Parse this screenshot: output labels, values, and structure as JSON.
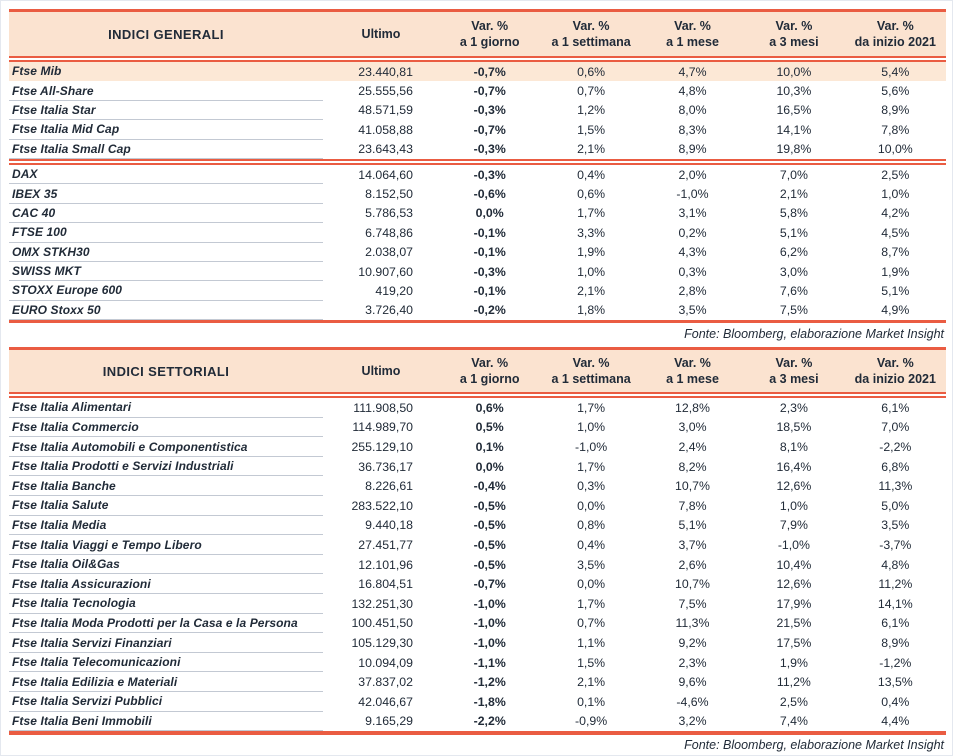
{
  "colors": {
    "accent_red": "#ea5c42",
    "header_bg": "#fbe3d0",
    "highlight_row_bg": "#fce8d6",
    "text": "#212b38",
    "row_separator": "#c3c9d3"
  },
  "columns": {
    "ultimo": "Ultimo",
    "variations": [
      [
        "Var. %",
        "a 1 giorno"
      ],
      [
        "Var. %",
        "a 1 settimana"
      ],
      [
        "Var. %",
        "a 1 mese"
      ],
      [
        "Var. %",
        "a 3 mesi"
      ],
      [
        "Var. %",
        "da inizio 2021"
      ]
    ]
  },
  "tables": [
    {
      "title": "INDICI GENERALI",
      "source": "Fonte: Bloomberg, elaborazione Market Insight",
      "sections": [
        {
          "rows": [
            {
              "label": "Ftse Mib",
              "highlight": true,
              "ultimo": "23.440,81",
              "vars": [
                "-0,7%",
                "0,6%",
                "4,7%",
                "10,0%",
                "5,4%"
              ]
            },
            {
              "label": "Ftse All-Share",
              "ultimo": "25.555,56",
              "vars": [
                "-0,7%",
                "0,7%",
                "4,8%",
                "10,3%",
                "5,6%"
              ]
            },
            {
              "label": "Ftse Italia Star",
              "ultimo": "48.571,59",
              "vars": [
                "-0,3%",
                "1,2%",
                "8,0%",
                "16,5%",
                "8,9%"
              ]
            },
            {
              "label": "Ftse Italia Mid Cap",
              "ultimo": "41.058,88",
              "vars": [
                "-0,7%",
                "1,5%",
                "8,3%",
                "14,1%",
                "7,8%"
              ]
            },
            {
              "label": "Ftse Italia Small Cap",
              "ultimo": "23.643,43",
              "vars": [
                "-0,3%",
                "2,1%",
                "8,9%",
                "19,8%",
                "10,0%"
              ]
            }
          ]
        },
        {
          "rows": [
            {
              "label": "DAX",
              "ultimo": "14.064,60",
              "vars": [
                "-0,3%",
                "0,4%",
                "2,0%",
                "7,0%",
                "2,5%"
              ]
            },
            {
              "label": "IBEX 35",
              "ultimo": "8.152,50",
              "vars": [
                "-0,6%",
                "0,6%",
                "-1,0%",
                "2,1%",
                "1,0%"
              ]
            },
            {
              "label": "CAC 40",
              "ultimo": "5.786,53",
              "vars": [
                "0,0%",
                "1,7%",
                "3,1%",
                "5,8%",
                "4,2%"
              ]
            },
            {
              "label": "FTSE 100",
              "ultimo": "6.748,86",
              "vars": [
                "-0,1%",
                "3,3%",
                "0,2%",
                "5,1%",
                "4,5%"
              ]
            },
            {
              "label": "OMX STKH30",
              "ultimo": "2.038,07",
              "vars": [
                "-0,1%",
                "1,9%",
                "4,3%",
                "6,2%",
                "8,7%"
              ]
            },
            {
              "label": "SWISS MKT",
              "ultimo": "10.907,60",
              "vars": [
                "-0,3%",
                "1,0%",
                "0,3%",
                "3,0%",
                "1,9%"
              ]
            },
            {
              "label": "STOXX Europe 600",
              "ultimo": "419,20",
              "vars": [
                "-0,1%",
                "2,1%",
                "2,8%",
                "7,6%",
                "5,1%"
              ]
            },
            {
              "label": "EURO Stoxx 50",
              "ultimo": "3.726,40",
              "vars": [
                "-0,2%",
                "1,8%",
                "3,5%",
                "7,5%",
                "4,9%"
              ]
            }
          ]
        }
      ]
    },
    {
      "title": "INDICI SETTORIALI",
      "source": "Fonte: Bloomberg, elaborazione Market Insight",
      "sections": [
        {
          "rows": [
            {
              "label": "Ftse Italia Alimentari",
              "ultimo": "111.908,50",
              "vars": [
                "0,6%",
                "1,7%",
                "12,8%",
                "2,3%",
                "6,1%"
              ]
            },
            {
              "label": "Ftse Italia Commercio",
              "ultimo": "114.989,70",
              "vars": [
                "0,5%",
                "1,0%",
                "3,0%",
                "18,5%",
                "7,0%"
              ]
            },
            {
              "label": "Ftse Italia Automobili e Componentistica",
              "ultimo": "255.129,10",
              "vars": [
                "0,1%",
                "-1,0%",
                "2,4%",
                "8,1%",
                "-2,2%"
              ]
            },
            {
              "label": "Ftse Italia Prodotti e Servizi Industriali",
              "ultimo": "36.736,17",
              "vars": [
                "0,0%",
                "1,7%",
                "8,2%",
                "16,4%",
                "6,8%"
              ]
            },
            {
              "label": "Ftse Italia Banche",
              "ultimo": "8.226,61",
              "vars": [
                "-0,4%",
                "0,3%",
                "10,7%",
                "12,6%",
                "11,3%"
              ]
            },
            {
              "label": "Ftse Italia Salute",
              "ultimo": "283.522,10",
              "vars": [
                "-0,5%",
                "0,0%",
                "7,8%",
                "1,0%",
                "5,0%"
              ]
            },
            {
              "label": "Ftse Italia Media",
              "ultimo": "9.440,18",
              "vars": [
                "-0,5%",
                "0,8%",
                "5,1%",
                "7,9%",
                "3,5%"
              ]
            },
            {
              "label": "Ftse Italia Viaggi e Tempo Libero",
              "ultimo": "27.451,77",
              "vars": [
                "-0,5%",
                "0,4%",
                "3,7%",
                "-1,0%",
                "-3,7%"
              ]
            },
            {
              "label": "Ftse Italia Oil&Gas",
              "ultimo": "12.101,96",
              "vars": [
                "-0,5%",
                "3,5%",
                "2,6%",
                "10,4%",
                "4,8%"
              ]
            },
            {
              "label": "Ftse Italia Assicurazioni",
              "ultimo": "16.804,51",
              "vars": [
                "-0,7%",
                "0,0%",
                "10,7%",
                "12,6%",
                "11,2%"
              ]
            },
            {
              "label": "Ftse Italia Tecnologia",
              "ultimo": "132.251,30",
              "vars": [
                "-1,0%",
                "1,7%",
                "7,5%",
                "17,9%",
                "14,1%"
              ]
            },
            {
              "label": "Ftse Italia Moda Prodotti per la Casa e la Persona",
              "ultimo": "100.451,50",
              "vars": [
                "-1,0%",
                "0,7%",
                "11,3%",
                "21,5%",
                "6,1%"
              ]
            },
            {
              "label": "Ftse Italia Servizi Finanziari",
              "ultimo": "105.129,30",
              "vars": [
                "-1,0%",
                "1,1%",
                "9,2%",
                "17,5%",
                "8,9%"
              ]
            },
            {
              "label": "Ftse Italia Telecomunicazioni",
              "ultimo": "10.094,09",
              "vars": [
                "-1,1%",
                "1,5%",
                "2,3%",
                "1,9%",
                "-1,2%"
              ]
            },
            {
              "label": "Ftse Italia Edilizia e Materiali",
              "ultimo": "37.837,02",
              "vars": [
                "-1,2%",
                "2,1%",
                "9,6%",
                "11,2%",
                "13,5%"
              ]
            },
            {
              "label": "Ftse Italia Servizi Pubblici",
              "ultimo": "42.046,67",
              "vars": [
                "-1,8%",
                "0,1%",
                "-4,6%",
                "2,5%",
                "0,4%"
              ]
            },
            {
              "label": "Ftse Italia Beni Immobili",
              "ultimo": "9.165,29",
              "vars": [
                "-2,2%",
                "-0,9%",
                "3,2%",
                "7,4%",
                "4,4%"
              ]
            }
          ]
        }
      ]
    }
  ]
}
